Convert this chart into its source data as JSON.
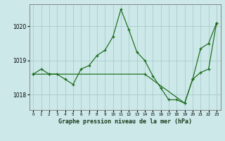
{
  "title": "Graphe pression niveau de la mer (hPa)",
  "background_color": "#cce8e8",
  "grid_color": "#aacccc",
  "line_color": "#1a6b1a",
  "xlim": [
    -0.5,
    23.5
  ],
  "ylim": [
    1017.55,
    1020.65
  ],
  "yticks": [
    1018,
    1019,
    1020
  ],
  "xticks": [
    0,
    1,
    2,
    3,
    4,
    5,
    6,
    7,
    8,
    9,
    10,
    11,
    12,
    13,
    14,
    15,
    16,
    17,
    18,
    19,
    20,
    21,
    22,
    23
  ],
  "series1_x": [
    0,
    1,
    2,
    3,
    4,
    5,
    6,
    7,
    8,
    9,
    10,
    11,
    12,
    13,
    14,
    15,
    16,
    17,
    18,
    19,
    20,
    21,
    22,
    23
  ],
  "series1_y": [
    1018.6,
    1018.75,
    1018.6,
    1018.6,
    1018.45,
    1018.3,
    1018.75,
    1018.85,
    1019.15,
    1019.3,
    1019.7,
    1020.5,
    1019.9,
    1019.25,
    1019.0,
    1018.55,
    1018.2,
    1017.85,
    1017.85,
    1017.75,
    1018.45,
    1019.35,
    1019.5,
    1020.1
  ],
  "series2_x": [
    0,
    2,
    14,
    19,
    20,
    21,
    22,
    23
  ],
  "series2_y": [
    1018.6,
    1018.6,
    1018.6,
    1017.75,
    1018.45,
    1018.65,
    1018.75,
    1020.1
  ]
}
